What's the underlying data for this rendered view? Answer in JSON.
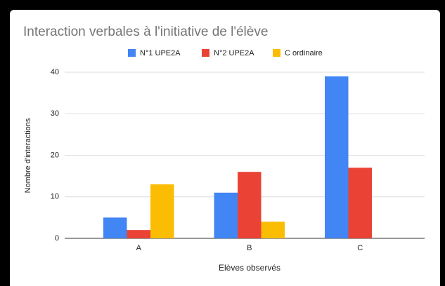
{
  "chart_data": {
    "type": "bar",
    "title": "Interaction verbales à l'initiative de l'élève",
    "x_label": "Elèves observés",
    "y_label": "Nombre d'interactions",
    "categories": [
      "A",
      "B",
      "C"
    ],
    "series": [
      {
        "name": "N°1 UPE2A",
        "color": "#4285f4",
        "values": [
          5,
          11,
          39
        ]
      },
      {
        "name": "N°2 UPE2A",
        "color": "#ea4335",
        "values": [
          2,
          16,
          17
        ]
      },
      {
        "name": "C ordinaire",
        "color": "#fbbc04",
        "values": [
          13,
          4,
          0
        ]
      }
    ],
    "ylim": [
      0,
      40
    ],
    "yticks": [
      0,
      10,
      20,
      30,
      40
    ],
    "grid": true,
    "legend": "top"
  }
}
